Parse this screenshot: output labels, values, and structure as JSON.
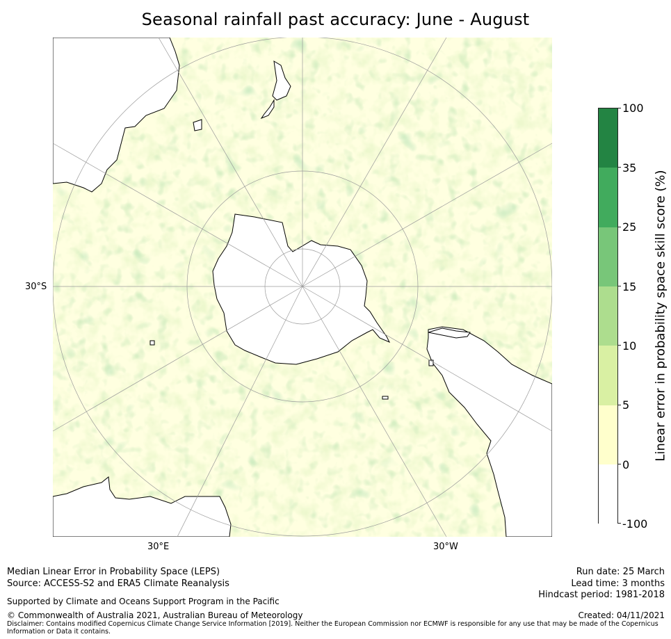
{
  "title": "Seasonal rainfall past accuracy: June - August",
  "map": {
    "projection": "South Polar Stereographic",
    "lat_label": "30°S",
    "lon_labels": [
      "30°E",
      "30°W"
    ],
    "land_color": "#ffffff",
    "coast_color": "#000000",
    "grid_color": "#9a9a9a"
  },
  "colorbar": {
    "label": "Linear error in probability space skill score (%)",
    "ticks": [
      "100",
      "35",
      "25",
      "15",
      "10",
      "5",
      "0",
      "-100"
    ],
    "bins": [
      {
        "range": "-100 to 0",
        "color": "#ffffff"
      },
      {
        "range": "0 to 5",
        "color": "#ffffcc"
      },
      {
        "range": "5 to 10",
        "color": "#d9f0a3"
      },
      {
        "range": "10 to 15",
        "color": "#addd8e"
      },
      {
        "range": "15 to 25",
        "color": "#78c679"
      },
      {
        "range": "25 to 35",
        "color": "#41ab5d"
      },
      {
        "range": "35 to 100",
        "color": "#238443"
      }
    ]
  },
  "footer": {
    "line1": "Median Linear Error in Probability Space (LEPS)",
    "line2": "Source: ACCESS-S2 and ERA5 Climate Reanalysis",
    "supported": "Supported by Climate and Oceans Support Program in the Pacific",
    "copyright": "© Commonwealth of Australia 2021, Australian Bureau of Meteorology",
    "disclaimer1": "Disclaimer: Contains modified Copernicus Climate Change Service Information [2019]. Neither the European Commission nor ECMWF is responsible for any use that may be made of the Copernicus",
    "disclaimer2": "Information or Data it contains.",
    "run_date": "Run date: 25 March",
    "lead_time": "Lead time: 3 months",
    "hindcast": "Hindcast period: 1981-2018",
    "created": "Created: 04/11/2021"
  }
}
